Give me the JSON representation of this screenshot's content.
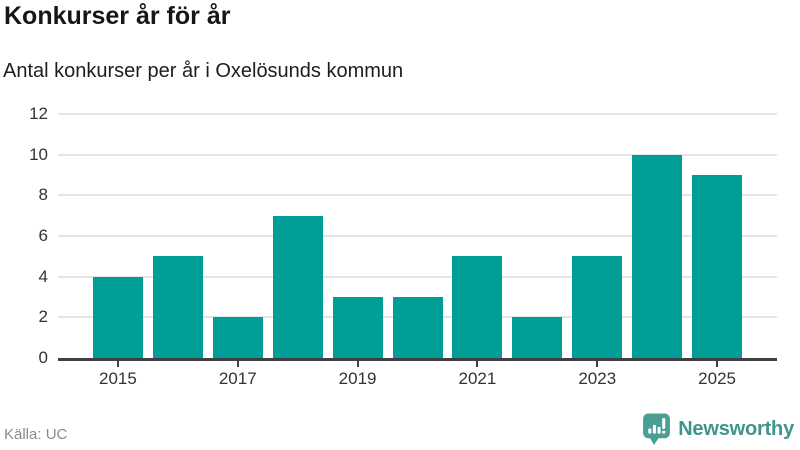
{
  "header": {
    "title": "Konkurser år för år",
    "subtitle": "Antal konkurser per år i Oxelösunds kommun"
  },
  "footer": {
    "source": "Källa: UC",
    "brand_name": "Newsworthy",
    "brand_icon": "speech-bubble-with-bar-chart-and-exclamation"
  },
  "colors": {
    "bar": "#009E97",
    "grid": "#e5e5e5",
    "axis": "#3f3f3f",
    "tick_label": "#333333",
    "title": "#161616",
    "subtitle": "#1d1d1d",
    "source_text": "#8b8b8b",
    "brand_teal": "#3f948b",
    "brand_icon_teal": "#4a9e95",
    "background": "#ffffff"
  },
  "chart_data": {
    "type": "bar",
    "title": "Konkurser år för år",
    "subtitle": "Antal konkurser per år i Oxelösunds kommun",
    "categories": [
      "2015",
      "2016",
      "2017",
      "2018",
      "2019",
      "2020",
      "2021",
      "2022",
      "2023",
      "2024",
      "2025"
    ],
    "values": [
      4,
      5,
      2,
      7,
      3,
      3,
      5,
      2,
      5,
      10,
      9
    ],
    "xlabel": "",
    "ylabel": "",
    "ylim": [
      0,
      12
    ],
    "yticks": [
      0,
      2,
      4,
      6,
      8,
      10,
      12
    ],
    "xtick_labels": [
      "2015",
      "2017",
      "2019",
      "2021",
      "2023",
      "2025"
    ],
    "grid": true,
    "legend": false,
    "bar_color": "#009E97",
    "source": "Källa: UC"
  }
}
